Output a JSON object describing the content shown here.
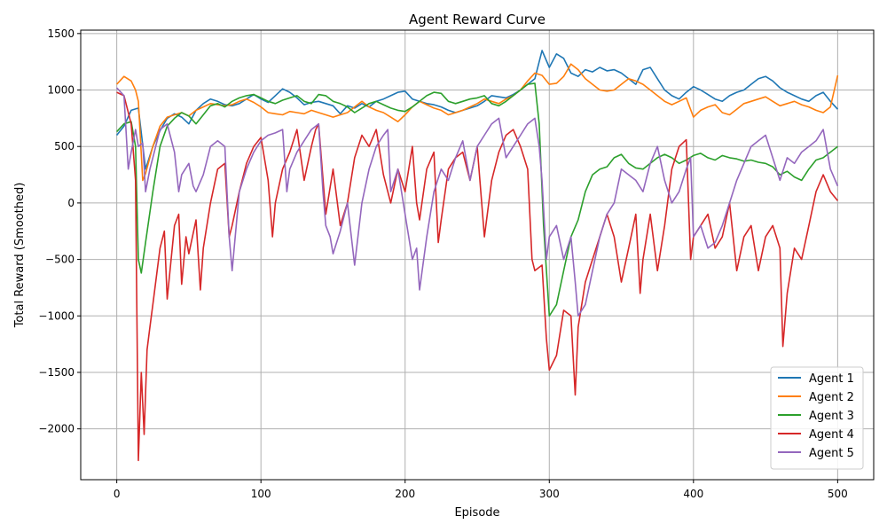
{
  "chart_data": {
    "type": "line",
    "title": "Agent Reward Curve",
    "xlabel": "Episode",
    "ylabel": "Total Reward (Smoothed)",
    "xlim": [
      -25,
      525
    ],
    "ylim": [
      -2450,
      1530
    ],
    "xticks": [
      0,
      100,
      200,
      300,
      400,
      500
    ],
    "yticks": [
      -2000,
      -1500,
      -1000,
      -500,
      0,
      500,
      1000,
      1500
    ],
    "grid": true,
    "legend_position": "lower right",
    "series": [
      {
        "name": "Agent 1",
        "color": "#1f77b4",
        "x": [
          0,
          5,
          10,
          15,
          20,
          25,
          30,
          35,
          40,
          45,
          50,
          55,
          60,
          65,
          70,
          75,
          80,
          85,
          90,
          95,
          100,
          105,
          110,
          115,
          120,
          125,
          130,
          135,
          140,
          145,
          150,
          155,
          160,
          165,
          170,
          175,
          180,
          185,
          190,
          195,
          200,
          205,
          210,
          215,
          220,
          225,
          230,
          235,
          240,
          245,
          250,
          255,
          260,
          265,
          270,
          275,
          280,
          285,
          290,
          295,
          300,
          305,
          310,
          315,
          320,
          325,
          330,
          335,
          340,
          345,
          350,
          355,
          360,
          365,
          370,
          375,
          380,
          385,
          390,
          395,
          400,
          405,
          410,
          415,
          420,
          425,
          430,
          435,
          440,
          445,
          450,
          455,
          460,
          465,
          470,
          475,
          480,
          485,
          490,
          495,
          500
        ],
        "values": [
          600,
          680,
          820,
          840,
          300,
          500,
          640,
          750,
          790,
          760,
          700,
          820,
          880,
          920,
          900,
          870,
          860,
          880,
          920,
          960,
          920,
          890,
          950,
          1010,
          980,
          930,
          870,
          890,
          900,
          880,
          860,
          790,
          860,
          840,
          880,
          850,
          900,
          920,
          950,
          980,
          990,
          920,
          900,
          880,
          870,
          850,
          820,
          800,
          820,
          840,
          860,
          900,
          950,
          940,
          930,
          960,
          1000,
          1050,
          1100,
          1350,
          1200,
          1320,
          1280,
          1150,
          1120,
          1180,
          1160,
          1200,
          1170,
          1180,
          1150,
          1100,
          1050,
          1180,
          1200,
          1100,
          1000,
          950,
          920,
          980,
          1030,
          1000,
          960,
          920,
          900,
          950,
          980,
          1000,
          1050,
          1100,
          1120,
          1080,
          1020,
          980,
          950,
          920,
          900,
          950,
          980,
          900,
          830
        ]
      },
      {
        "name": "Agent 2",
        "color": "#ff7f0e",
        "x": [
          0,
          5,
          10,
          13,
          15,
          18,
          20,
          25,
          30,
          35,
          40,
          45,
          50,
          55,
          60,
          65,
          70,
          75,
          80,
          85,
          90,
          95,
          100,
          105,
          110,
          115,
          120,
          125,
          130,
          135,
          140,
          145,
          150,
          155,
          160,
          165,
          170,
          175,
          180,
          185,
          190,
          195,
          200,
          205,
          210,
          215,
          220,
          225,
          230,
          235,
          240,
          245,
          250,
          255,
          260,
          265,
          270,
          275,
          280,
          285,
          290,
          295,
          300,
          305,
          310,
          315,
          320,
          325,
          330,
          335,
          340,
          345,
          350,
          355,
          360,
          365,
          370,
          375,
          380,
          385,
          390,
          395,
          400,
          405,
          410,
          415,
          420,
          425,
          430,
          435,
          440,
          445,
          450,
          455,
          460,
          465,
          470,
          475,
          480,
          485,
          490,
          495,
          500
        ],
        "values": [
          1050,
          1120,
          1080,
          1000,
          900,
          200,
          260,
          500,
          680,
          760,
          780,
          800,
          770,
          820,
          850,
          880,
          870,
          860,
          870,
          900,
          920,
          890,
          850,
          800,
          790,
          780,
          810,
          800,
          790,
          820,
          800,
          780,
          760,
          780,
          800,
          850,
          900,
          850,
          820,
          800,
          760,
          720,
          780,
          850,
          900,
          870,
          840,
          820,
          780,
          800,
          820,
          850,
          880,
          920,
          900,
          880,
          920,
          950,
          1000,
          1080,
          1150,
          1130,
          1050,
          1060,
          1120,
          1230,
          1180,
          1100,
          1050,
          1000,
          990,
          1000,
          1050,
          1100,
          1080,
          1050,
          1000,
          950,
          900,
          870,
          900,
          930,
          760,
          820,
          850,
          870,
          800,
          780,
          830,
          880,
          900,
          920,
          940,
          900,
          860,
          880,
          900,
          870,
          850,
          820,
          800,
          850,
          1130
        ]
      },
      {
        "name": "Agent 3",
        "color": "#2ca02c",
        "x": [
          0,
          5,
          10,
          13,
          15,
          17,
          20,
          25,
          30,
          35,
          40,
          45,
          50,
          55,
          60,
          65,
          70,
          75,
          80,
          85,
          90,
          95,
          100,
          105,
          110,
          115,
          120,
          125,
          130,
          135,
          140,
          145,
          150,
          155,
          160,
          165,
          170,
          175,
          180,
          185,
          190,
          195,
          200,
          205,
          210,
          215,
          220,
          225,
          230,
          235,
          240,
          245,
          250,
          255,
          260,
          265,
          270,
          275,
          280,
          285,
          290,
          293,
          296,
          300,
          305,
          310,
          315,
          320,
          325,
          330,
          335,
          340,
          345,
          350,
          355,
          360,
          365,
          370,
          375,
          380,
          385,
          390,
          395,
          400,
          405,
          410,
          415,
          420,
          425,
          430,
          435,
          440,
          445,
          450,
          455,
          460,
          465,
          470,
          475,
          480,
          485,
          490,
          495,
          500
        ],
        "values": [
          630,
          700,
          720,
          500,
          -500,
          -620,
          -350,
          100,
          500,
          680,
          750,
          800,
          770,
          700,
          780,
          860,
          880,
          850,
          900,
          930,
          950,
          960,
          930,
          900,
          880,
          910,
          930,
          950,
          900,
          880,
          960,
          950,
          900,
          880,
          850,
          800,
          840,
          880,
          900,
          870,
          840,
          820,
          810,
          850,
          900,
          950,
          980,
          970,
          900,
          880,
          900,
          920,
          930,
          950,
          880,
          860,
          900,
          950,
          1000,
          1050,
          1060,
          700,
          -200,
          -1000,
          -900,
          -600,
          -300,
          -150,
          100,
          250,
          300,
          320,
          400,
          430,
          350,
          310,
          300,
          350,
          400,
          430,
          400,
          350,
          380,
          420,
          440,
          400,
          380,
          420,
          400,
          390,
          370,
          380,
          360,
          350,
          320,
          250,
          280,
          230,
          200,
          300,
          380,
          400,
          450,
          500
        ]
      },
      {
        "name": "Agent 4",
        "color": "#d62728",
        "x": [
          0,
          5,
          10,
          13,
          15,
          17,
          19,
          21,
          23,
          25,
          30,
          33,
          35,
          40,
          43,
          45,
          48,
          50,
          55,
          58,
          60,
          65,
          70,
          75,
          78,
          80,
          85,
          90,
          95,
          100,
          105,
          108,
          110,
          115,
          120,
          125,
          130,
          135,
          138,
          140,
          145,
          150,
          155,
          160,
          165,
          170,
          175,
          180,
          185,
          190,
          195,
          200,
          205,
          208,
          210,
          215,
          220,
          223,
          225,
          230,
          235,
          240,
          245,
          250,
          255,
          260,
          265,
          270,
          275,
          280,
          285,
          288,
          290,
          295,
          298,
          300,
          305,
          310,
          315,
          318,
          320,
          325,
          330,
          335,
          340,
          345,
          350,
          355,
          360,
          363,
          365,
          370,
          375,
          380,
          385,
          390,
          395,
          398,
          400,
          405,
          410,
          415,
          420,
          425,
          430,
          435,
          440,
          445,
          450,
          455,
          460,
          462,
          465,
          470,
          475,
          480,
          485,
          490,
          495,
          500
        ],
        "values": [
          980,
          950,
          700,
          200,
          -2280,
          -1500,
          -2050,
          -1300,
          -1100,
          -900,
          -400,
          -250,
          -850,
          -200,
          -100,
          -720,
          -300,
          -450,
          -150,
          -770,
          -400,
          0,
          300,
          350,
          -300,
          -200,
          100,
          350,
          500,
          580,
          200,
          -300,
          0,
          300,
          450,
          650,
          200,
          500,
          650,
          700,
          -100,
          300,
          -200,
          0,
          400,
          600,
          500,
          650,
          250,
          0,
          300,
          100,
          500,
          0,
          -150,
          300,
          450,
          -350,
          -150,
          300,
          400,
          450,
          200,
          500,
          -300,
          200,
          450,
          600,
          650,
          500,
          300,
          -500,
          -600,
          -550,
          -1200,
          -1480,
          -1350,
          -950,
          -1000,
          -1700,
          -1100,
          -700,
          -500,
          -300,
          -100,
          -300,
          -700,
          -400,
          -100,
          -800,
          -500,
          -100,
          -600,
          -200,
          300,
          500,
          560,
          -500,
          -300,
          -200,
          -100,
          -400,
          -300,
          0,
          -600,
          -300,
          -200,
          -600,
          -300,
          -200,
          -400,
          -1270,
          -800,
          -400,
          -500,
          -200,
          100,
          250,
          100,
          20
        ]
      },
      {
        "name": "Agent 5",
        "color": "#9467bd",
        "x": [
          0,
          5,
          8,
          10,
          13,
          15,
          18,
          20,
          23,
          25,
          30,
          35,
          40,
          43,
          45,
          50,
          53,
          55,
          60,
          65,
          70,
          75,
          78,
          80,
          85,
          90,
          95,
          100,
          105,
          110,
          115,
          118,
          120,
          125,
          130,
          135,
          140,
          143,
          145,
          148,
          150,
          155,
          160,
          165,
          170,
          175,
          180,
          185,
          188,
          190,
          195,
          200,
          205,
          208,
          210,
          215,
          220,
          225,
          230,
          235,
          240,
          245,
          250,
          255,
          260,
          265,
          270,
          275,
          280,
          285,
          290,
          293,
          295,
          298,
          300,
          305,
          310,
          315,
          318,
          320,
          325,
          330,
          335,
          340,
          345,
          350,
          355,
          360,
          365,
          370,
          375,
          380,
          385,
          390,
          395,
          398,
          400,
          405,
          410,
          415,
          420,
          425,
          430,
          435,
          440,
          445,
          450,
          455,
          460,
          465,
          470,
          475,
          480,
          485,
          490,
          495,
          500
        ],
        "values": [
          1020,
          950,
          300,
          450,
          650,
          500,
          530,
          100,
          300,
          400,
          650,
          700,
          450,
          100,
          250,
          350,
          150,
          100,
          250,
          500,
          550,
          500,
          -300,
          -600,
          100,
          300,
          450,
          550,
          600,
          620,
          650,
          100,
          300,
          450,
          550,
          650,
          700,
          100,
          -200,
          -300,
          -450,
          -250,
          0,
          -550,
          0,
          300,
          500,
          600,
          650,
          100,
          300,
          -100,
          -500,
          -400,
          -770,
          -300,
          100,
          300,
          200,
          400,
          550,
          200,
          500,
          600,
          700,
          750,
          400,
          500,
          600,
          700,
          750,
          500,
          200,
          -500,
          -300,
          -200,
          -500,
          -300,
          -700,
          -1000,
          -900,
          -600,
          -300,
          -100,
          0,
          300,
          250,
          200,
          100,
          350,
          500,
          200,
          0,
          100,
          300,
          400,
          -300,
          -200,
          -400,
          -350,
          -200,
          0,
          200,
          350,
          500,
          550,
          600,
          400,
          200,
          400,
          350,
          450,
          500,
          550,
          650,
          300,
          150
        ]
      }
    ]
  }
}
